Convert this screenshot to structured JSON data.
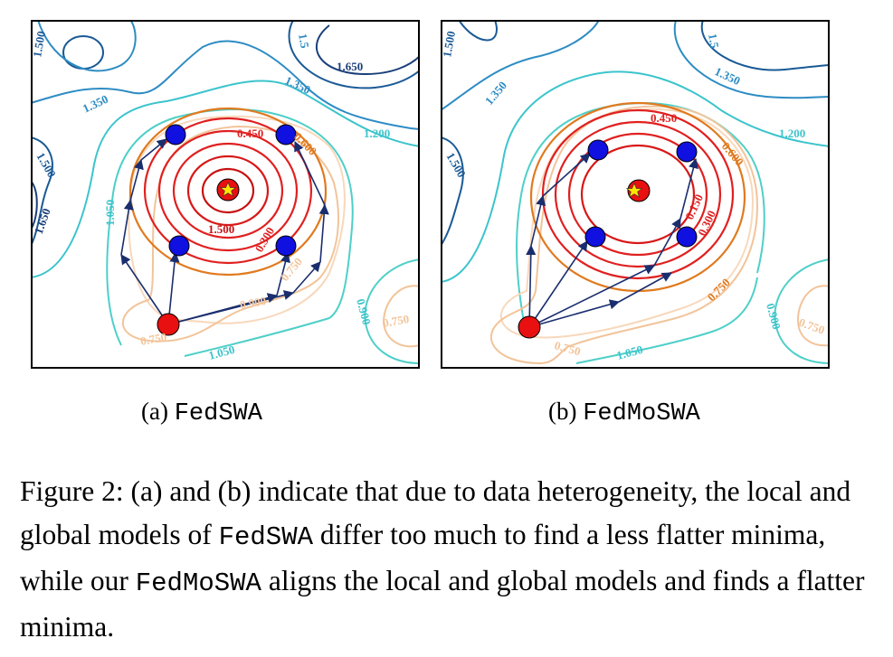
{
  "figure": {
    "panel_a": {
      "subcaption_label": "(a)",
      "subcaption_method": "FedSWA",
      "contour_labels": [
        "1.500",
        "1.350",
        "1.650",
        "1.500",
        "1.650",
        "1.350",
        "1.050",
        "1.200",
        "0.450",
        "0.600",
        "1.500",
        "0.300",
        "0.750",
        "0.900",
        "0.900",
        "0.750",
        "0.750",
        "1.050",
        "1.5"
      ]
    },
    "panel_b": {
      "subcaption_label": "(b)",
      "subcaption_method": "FedMoSWA",
      "contour_labels": [
        "1.500",
        "1.350",
        "1.500",
        "1.350",
        "1.200",
        "0.450",
        "0.600",
        "0.150",
        "0.300",
        "0.750",
        "0.900",
        "0.750",
        "0.750",
        "1.050",
        "1.5"
      ]
    }
  },
  "caption": {
    "prefix": "Figure 2: (a) and (b) indicate that due to data heterogeneity, the local and global models of",
    "method1": "FedSWA",
    "middle": "differ too much to find a less flatter minima, while our",
    "method2": "FedMoSWA",
    "suffix": "aligns the local and global models and finds a flatter minima."
  },
  "colors": {
    "dark_blue": "#1a5a96",
    "mid_blue": "#2d8cc4",
    "cyan": "#3cc4cc",
    "teal": "#4ecfc8",
    "peach": "#f2c49a",
    "orange": "#e07a1f",
    "red": "#e02020",
    "dark_red": "#c81010",
    "node_blue": "#1010e0",
    "node_red": "#e81010",
    "arrow": "#1a2e6e",
    "star": "#ffe600"
  }
}
